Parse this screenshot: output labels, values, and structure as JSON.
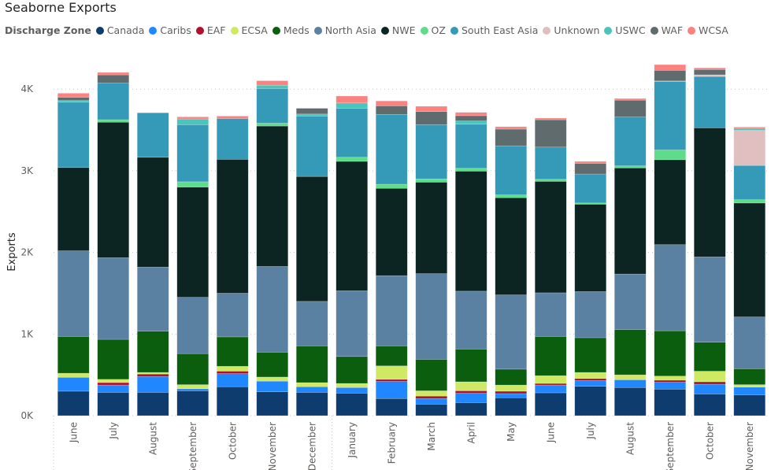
{
  "chart_data": {
    "type": "bar",
    "stacked": true,
    "title": "Seaborne Exports",
    "legend_title": "Discharge Zone",
    "legend_position": "top-left",
    "xlabel": "",
    "ylabel": "Exports",
    "ylim": [
      0,
      4400
    ],
    "yticks": [
      0,
      1000,
      2000,
      3000,
      4000
    ],
    "ytick_labels": [
      "0K",
      "1K",
      "2K",
      "3K",
      "4K"
    ],
    "grid": true,
    "categories": [
      "June",
      "July",
      "August",
      "September",
      "October",
      "November",
      "December",
      "January",
      "February",
      "March",
      "April",
      "May",
      "June",
      "July",
      "August",
      "September",
      "October",
      "November"
    ],
    "series": [
      {
        "name": "Canada",
        "color": "#0F3C6E",
        "values": [
          300,
          285,
          285,
          305,
          355,
          293,
          285,
          275,
          210,
          140,
          160,
          220,
          280,
          360,
          345,
          325,
          265,
          255
        ]
      },
      {
        "name": "Caribs",
        "color": "#2087FF",
        "values": [
          170,
          90,
          195,
          25,
          160,
          130,
          70,
          70,
          210,
          70,
          115,
          50,
          95,
          70,
          95,
          85,
          120,
          95
        ]
      },
      {
        "name": "EAF",
        "color": "#B0102C",
        "values": [
          0,
          30,
          30,
          0,
          30,
          0,
          0,
          0,
          25,
          30,
          30,
          30,
          20,
          25,
          0,
          25,
          30,
          0
        ]
      },
      {
        "name": "ECSA",
        "color": "#CFE964",
        "values": [
          50,
          40,
          20,
          50,
          60,
          50,
          50,
          50,
          165,
          65,
          110,
          75,
          95,
          75,
          60,
          50,
          130,
          30
        ]
      },
      {
        "name": "Meds",
        "color": "#0B5E0E",
        "values": [
          450,
          490,
          505,
          380,
          360,
          305,
          450,
          330,
          245,
          385,
          400,
          195,
          480,
          425,
          555,
          555,
          355,
          195
        ]
      },
      {
        "name": "North Asia",
        "color": "#5A80A2",
        "values": [
          1050,
          1000,
          785,
          690,
          535,
          1050,
          545,
          805,
          860,
          1050,
          710,
          910,
          535,
          565,
          680,
          1055,
          1045,
          635
        ]
      },
      {
        "name": "NWE",
        "color": "#0D2522",
        "values": [
          1020,
          1660,
          1345,
          1350,
          1640,
          1720,
          1530,
          1585,
          1070,
          1120,
          1470,
          1190,
          1365,
          1070,
          1300,
          1040,
          1580,
          1395
        ]
      },
      {
        "name": "OZ",
        "color": "#5FDC89",
        "values": [
          0,
          30,
          0,
          65,
          0,
          35,
          0,
          50,
          50,
          40,
          35,
          35,
          25,
          15,
          25,
          120,
          0,
          40
        ]
      },
      {
        "name": "South East Asia",
        "color": "#3599B8",
        "values": [
          800,
          450,
          545,
          700,
          500,
          425,
          740,
          600,
          855,
          665,
          540,
          600,
          395,
          355,
          600,
          840,
          630,
          420
        ]
      },
      {
        "name": "Unknown",
        "color": "#DFBFBF",
        "values": [
          0,
          0,
          0,
          0,
          0,
          0,
          0,
          0,
          0,
          0,
          0,
          0,
          0,
          0,
          0,
          5,
          20,
          430
        ]
      },
      {
        "name": "USWC",
        "color": "#4AC5BB",
        "values": [
          20,
          0,
          0,
          70,
          0,
          40,
          25,
          65,
          0,
          0,
          40,
          0,
          0,
          0,
          0,
          0,
          0,
          25
        ]
      },
      {
        "name": "WAF",
        "color": "#5F6B6D",
        "values": [
          40,
          100,
          0,
          0,
          0,
          0,
          70,
          0,
          105,
          160,
          65,
          205,
          335,
          130,
          205,
          130,
          65,
          0
        ]
      },
      {
        "name": "WCSA",
        "color": "#FB8281",
        "values": [
          50,
          30,
          0,
          25,
          30,
          55,
          0,
          85,
          60,
          65,
          40,
          30,
          20,
          25,
          20,
          70,
          20,
          15
        ]
      }
    ]
  }
}
